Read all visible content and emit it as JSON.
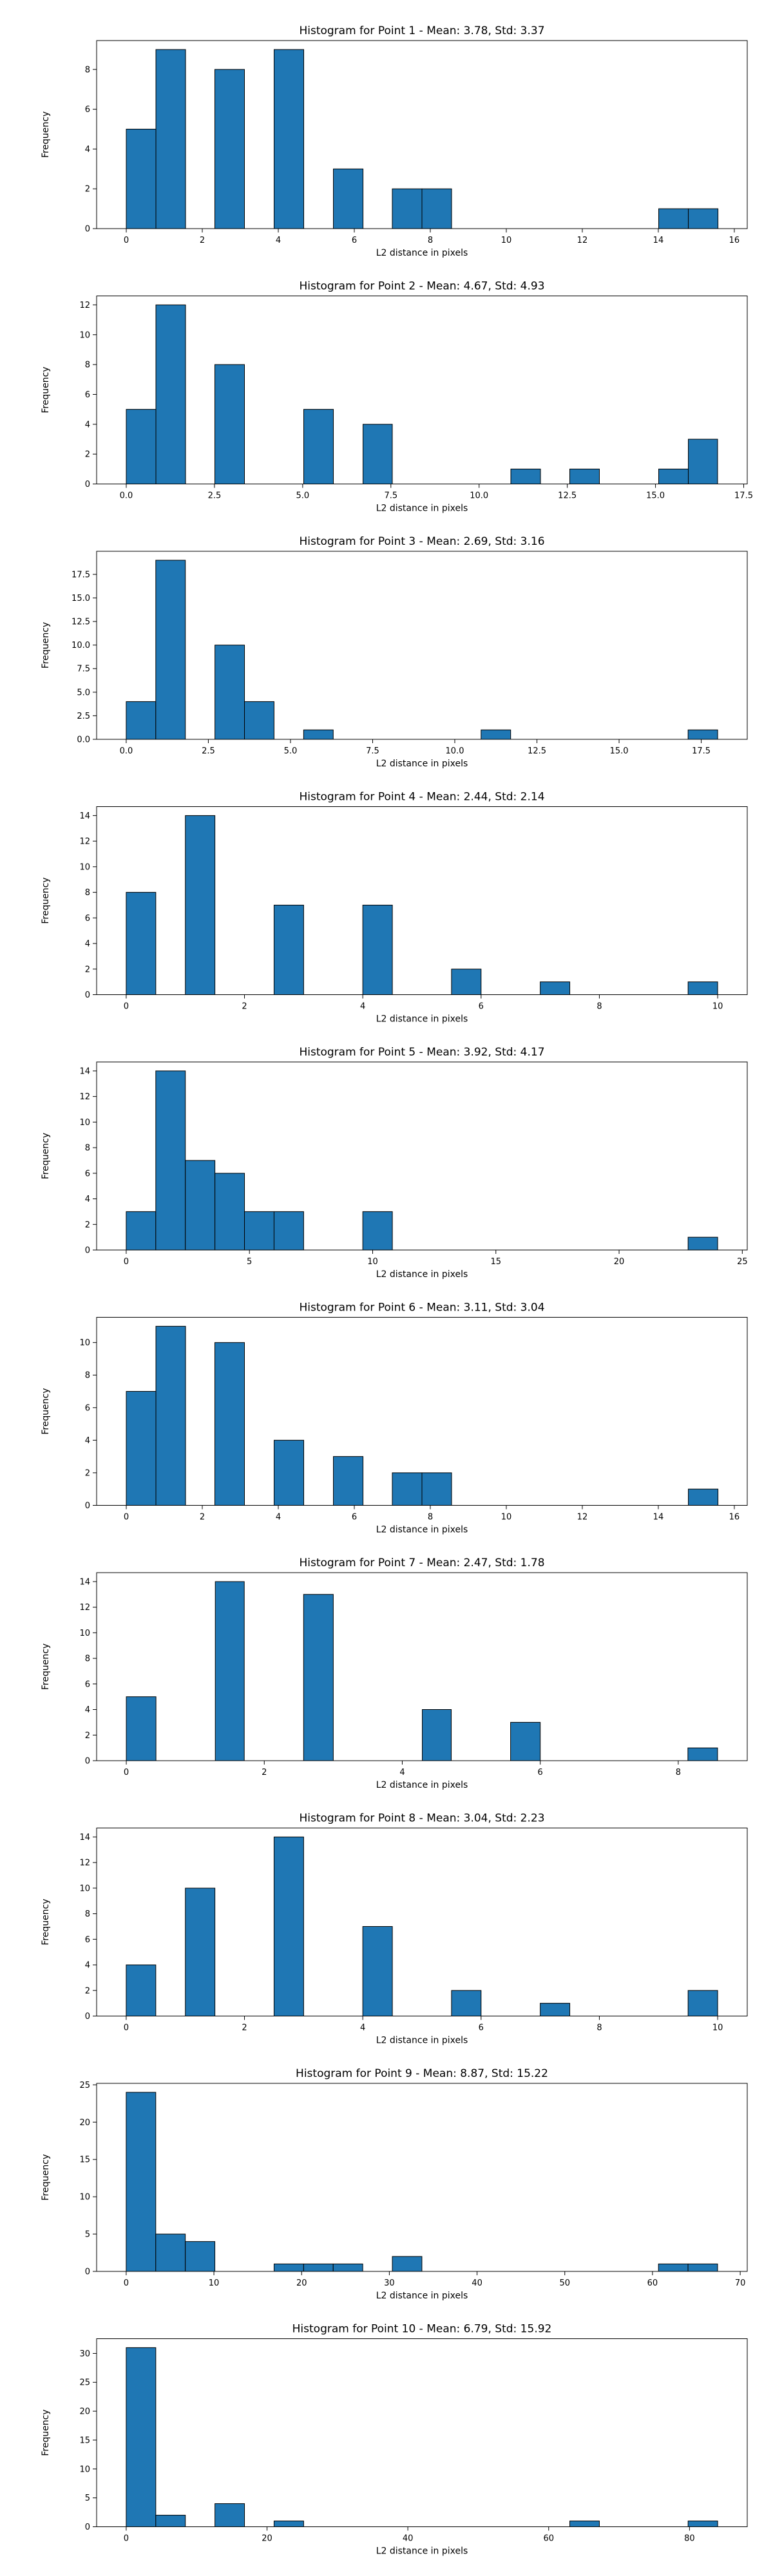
{
  "bar_color": "#1f77b4",
  "bar_edge_color": "#000000",
  "chart_data": [
    {
      "type": "bar",
      "title": "Histogram for Point 1 - Mean: 3.78, Std: 3.37",
      "xlabel": "L2 distance in pixels",
      "ylabel": "Frequency",
      "xlim": [
        -0.78,
        16.34
      ],
      "ylim": [
        0,
        9.45
      ],
      "xticks": [
        0,
        2,
        4,
        6,
        8,
        10,
        12,
        14,
        16
      ],
      "yticks": [
        0,
        2,
        4,
        6,
        8
      ],
      "xtick_labels": [
        "0",
        "2",
        "4",
        "6",
        "8",
        "10",
        "12",
        "14",
        "16"
      ],
      "ytick_labels": [
        "0",
        "2",
        "4",
        "6",
        "8"
      ],
      "bins": [
        [
          0.0,
          0.78,
          5
        ],
        [
          0.78,
          1.56,
          9
        ],
        [
          2.33,
          3.11,
          8
        ],
        [
          3.89,
          4.67,
          9
        ],
        [
          5.45,
          6.23,
          3
        ],
        [
          7.0,
          7.78,
          2
        ],
        [
          7.78,
          8.56,
          2
        ],
        [
          14.01,
          14.79,
          1
        ],
        [
          14.79,
          15.57,
          1
        ]
      ]
    },
    {
      "type": "bar",
      "title": "Histogram for Point 2 - Mean: 4.67, Std: 4.93",
      "xlabel": "L2 distance in pixels",
      "ylabel": "Frequency",
      "xlim": [
        -0.84,
        17.6
      ],
      "ylim": [
        0,
        12.6
      ],
      "xticks": [
        0,
        2.5,
        5,
        7.5,
        10,
        12.5,
        15,
        17.5
      ],
      "yticks": [
        0,
        2,
        4,
        6,
        8,
        10,
        12
      ],
      "xtick_labels": [
        "0.0",
        "2.5",
        "5.0",
        "7.5",
        "10.0",
        "12.5",
        "15.0",
        "17.5"
      ],
      "ytick_labels": [
        "0",
        "2",
        "4",
        "6",
        "8",
        "10",
        "12"
      ],
      "bins": [
        [
          0.0,
          0.84,
          5
        ],
        [
          0.84,
          1.68,
          12
        ],
        [
          2.51,
          3.35,
          8
        ],
        [
          5.03,
          5.87,
          5
        ],
        [
          6.71,
          7.54,
          4
        ],
        [
          10.9,
          11.74,
          1
        ],
        [
          12.57,
          13.41,
          1
        ],
        [
          15.09,
          15.93,
          1
        ],
        [
          15.93,
          16.76,
          3
        ]
      ]
    },
    {
      "type": "bar",
      "title": "Histogram for Point 3 - Mean: 2.69, Std: 3.16",
      "xlabel": "L2 distance in pixels",
      "ylabel": "Frequency",
      "xlim": [
        -0.9,
        18.9
      ],
      "ylim": [
        0,
        19.95
      ],
      "xticks": [
        0,
        2.5,
        5,
        7.5,
        10,
        12.5,
        15,
        17.5
      ],
      "yticks": [
        0,
        2.5,
        5,
        7.5,
        10,
        12.5,
        15,
        17.5
      ],
      "xtick_labels": [
        "0.0",
        "2.5",
        "5.0",
        "7.5",
        "10.0",
        "12.5",
        "15.0",
        "17.5"
      ],
      "ytick_labels": [
        "0.0",
        "2.5",
        "5.0",
        "7.5",
        "10.0",
        "12.5",
        "15.0",
        "17.5"
      ],
      "bins": [
        [
          0.0,
          0.9,
          4
        ],
        [
          0.9,
          1.8,
          19
        ],
        [
          2.7,
          3.6,
          10
        ],
        [
          3.6,
          4.5,
          4
        ],
        [
          5.4,
          6.3,
          1
        ],
        [
          10.8,
          11.7,
          1
        ],
        [
          17.1,
          18.0,
          1
        ]
      ]
    },
    {
      "type": "bar",
      "title": "Histogram for Point 4 - Mean: 2.44, Std: 2.14",
      "xlabel": "L2 distance in pixels",
      "ylabel": "Frequency",
      "xlim": [
        -0.5,
        10.5
      ],
      "ylim": [
        0,
        14.7
      ],
      "xticks": [
        0,
        2,
        4,
        6,
        8,
        10
      ],
      "yticks": [
        0,
        2,
        4,
        6,
        8,
        10,
        12,
        14
      ],
      "xtick_labels": [
        "0",
        "2",
        "4",
        "6",
        "8",
        "10"
      ],
      "ytick_labels": [
        "0",
        "2",
        "4",
        "6",
        "8",
        "10",
        "12",
        "14"
      ],
      "bins": [
        [
          0.0,
          0.5,
          8
        ],
        [
          1.0,
          1.5,
          14
        ],
        [
          2.5,
          3.0,
          7
        ],
        [
          4.0,
          4.5,
          7
        ],
        [
          5.5,
          6.0,
          2
        ],
        [
          7.0,
          7.5,
          1
        ],
        [
          9.5,
          10.0,
          1
        ]
      ]
    },
    {
      "type": "bar",
      "title": "Histogram for Point 5 - Mean: 3.92, Std: 4.17",
      "xlabel": "L2 distance in pixels",
      "ylabel": "Frequency",
      "xlim": [
        -1.2,
        25.2
      ],
      "ylim": [
        0,
        14.7
      ],
      "xticks": [
        0,
        5,
        10,
        15,
        20,
        25
      ],
      "yticks": [
        0,
        2,
        4,
        6,
        8,
        10,
        12,
        14
      ],
      "xtick_labels": [
        "0",
        "5",
        "10",
        "15",
        "20",
        "25"
      ],
      "ytick_labels": [
        "0",
        "2",
        "4",
        "6",
        "8",
        "10",
        "12",
        "14"
      ],
      "bins": [
        [
          0.0,
          1.2,
          3
        ],
        [
          1.2,
          2.4,
          14
        ],
        [
          2.4,
          3.6,
          7
        ],
        [
          3.6,
          4.8,
          6
        ],
        [
          4.8,
          6.0,
          3
        ],
        [
          6.0,
          7.2,
          3
        ],
        [
          9.6,
          10.8,
          3
        ],
        [
          22.8,
          24.0,
          1
        ]
      ]
    },
    {
      "type": "bar",
      "title": "Histogram for Point 6 - Mean: 3.11, Std: 3.04",
      "xlabel": "L2 distance in pixels",
      "ylabel": "Frequency",
      "xlim": [
        -0.78,
        16.34
      ],
      "ylim": [
        0,
        11.55
      ],
      "xticks": [
        0,
        2,
        4,
        6,
        8,
        10,
        12,
        14,
        16
      ],
      "yticks": [
        0,
        2,
        4,
        6,
        8,
        10
      ],
      "xtick_labels": [
        "0",
        "2",
        "4",
        "6",
        "8",
        "10",
        "12",
        "14",
        "16"
      ],
      "ytick_labels": [
        "0",
        "2",
        "4",
        "6",
        "8",
        "10"
      ],
      "bins": [
        [
          0.0,
          0.78,
          7
        ],
        [
          0.78,
          1.56,
          11
        ],
        [
          2.33,
          3.11,
          10
        ],
        [
          3.89,
          4.67,
          4
        ],
        [
          5.45,
          6.23,
          3
        ],
        [
          7.0,
          7.78,
          2
        ],
        [
          7.78,
          8.56,
          2
        ],
        [
          14.79,
          15.57,
          1
        ]
      ]
    },
    {
      "type": "bar",
      "title": "Histogram for Point 7 - Mean: 2.47, Std: 1.78",
      "xlabel": "L2 distance in pixels",
      "ylabel": "Frequency",
      "xlim": [
        -0.43,
        9.0
      ],
      "ylim": [
        0,
        14.7
      ],
      "xticks": [
        0,
        2,
        4,
        6,
        8
      ],
      "yticks": [
        0,
        2,
        4,
        6,
        8,
        10,
        12,
        14
      ],
      "xtick_labels": [
        "0",
        "2",
        "4",
        "6",
        "8"
      ],
      "ytick_labels": [
        "0",
        "2",
        "4",
        "6",
        "8",
        "10",
        "12",
        "14"
      ],
      "bins": [
        [
          0.0,
          0.43,
          5
        ],
        [
          1.29,
          1.71,
          14
        ],
        [
          2.57,
          3.0,
          13
        ],
        [
          4.29,
          4.71,
          4
        ],
        [
          5.57,
          6.0,
          3
        ],
        [
          8.14,
          8.57,
          1
        ]
      ]
    },
    {
      "type": "bar",
      "title": "Histogram for Point 8 - Mean: 3.04, Std: 2.23",
      "xlabel": "L2 distance in pixels",
      "ylabel": "Frequency",
      "xlim": [
        -0.5,
        10.5
      ],
      "ylim": [
        0,
        14.7
      ],
      "xticks": [
        0,
        2,
        4,
        6,
        8,
        10
      ],
      "yticks": [
        0,
        2,
        4,
        6,
        8,
        10,
        12,
        14
      ],
      "xtick_labels": [
        "0",
        "2",
        "4",
        "6",
        "8",
        "10"
      ],
      "ytick_labels": [
        "0",
        "2",
        "4",
        "6",
        "8",
        "10",
        "12",
        "14"
      ],
      "bins": [
        [
          0.0,
          0.5,
          4
        ],
        [
          1.0,
          1.5,
          10
        ],
        [
          2.5,
          3.0,
          14
        ],
        [
          4.0,
          4.5,
          7
        ],
        [
          5.5,
          6.0,
          2
        ],
        [
          7.0,
          7.5,
          1
        ],
        [
          9.5,
          10.0,
          2
        ]
      ]
    },
    {
      "type": "bar",
      "title": "Histogram for Point 9 - Mean: 8.87, Std: 15.22",
      "xlabel": "L2 distance in pixels",
      "ylabel": "Frequency",
      "xlim": [
        -3.37,
        70.8
      ],
      "ylim": [
        0,
        25.2
      ],
      "xticks": [
        0,
        10,
        20,
        30,
        40,
        50,
        60,
        70
      ],
      "yticks": [
        0,
        5,
        10,
        15,
        20,
        25
      ],
      "xtick_labels": [
        "0",
        "10",
        "20",
        "30",
        "40",
        "50",
        "60",
        "70"
      ],
      "ytick_labels": [
        "0",
        "5",
        "10",
        "15",
        "20",
        "25"
      ],
      "bins": [
        [
          0.0,
          3.37,
          24
        ],
        [
          3.37,
          6.74,
          5
        ],
        [
          6.74,
          10.11,
          4
        ],
        [
          16.86,
          20.23,
          1
        ],
        [
          20.23,
          23.6,
          1
        ],
        [
          23.6,
          26.97,
          1
        ],
        [
          30.34,
          33.71,
          2
        ],
        [
          60.68,
          64.05,
          1
        ],
        [
          64.05,
          67.42,
          1
        ]
      ]
    },
    {
      "type": "bar",
      "title": "Histogram for Point 10 - Mean: 6.79, Std: 15.92",
      "xlabel": "L2 distance in pixels",
      "ylabel": "Frequency",
      "xlim": [
        -4.2,
        88.2
      ],
      "ylim": [
        0,
        32.55
      ],
      "xticks": [
        0,
        20,
        40,
        60,
        80
      ],
      "yticks": [
        0,
        5,
        10,
        15,
        20,
        25,
        30
      ],
      "xtick_labels": [
        "0",
        "20",
        "40",
        "60",
        "80"
      ],
      "ytick_labels": [
        "0",
        "5",
        "10",
        "15",
        "20",
        "25",
        "30"
      ],
      "bins": [
        [
          0.0,
          4.2,
          31
        ],
        [
          4.2,
          8.4,
          2
        ],
        [
          12.6,
          16.8,
          4
        ],
        [
          21.0,
          25.2,
          1
        ],
        [
          63.0,
          67.2,
          1
        ],
        [
          79.8,
          84.0,
          1
        ]
      ]
    }
  ]
}
